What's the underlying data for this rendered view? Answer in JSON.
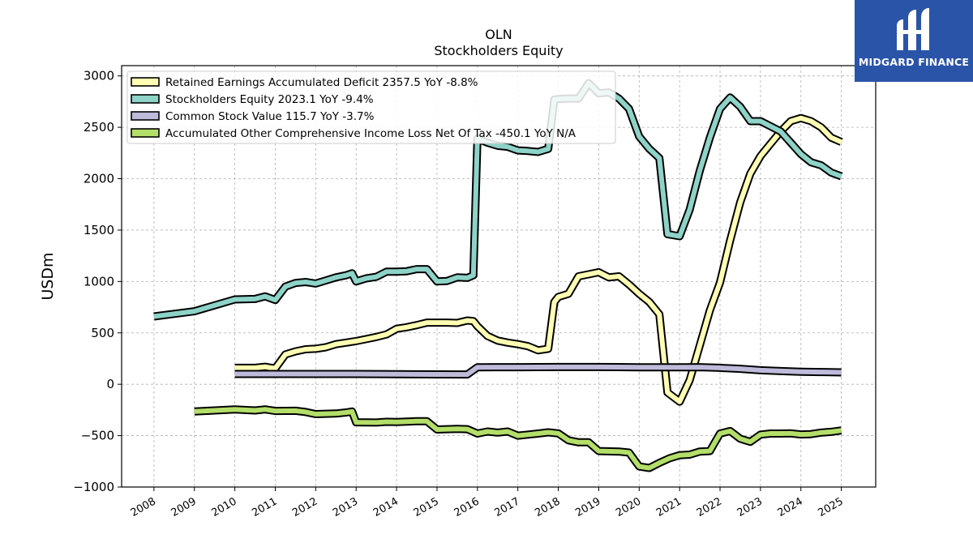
{
  "chart_data": {
    "type": "line",
    "title": "OLN",
    "subtitle": "Stockholders  Equity",
    "ylabel": "USDm",
    "xlabel": "",
    "ylim": [
      -1000,
      3100
    ],
    "xlim": [
      2007.2,
      2025.85
    ],
    "yticks": [
      -1000,
      -500,
      0,
      500,
      1000,
      1500,
      2000,
      2500,
      3000
    ],
    "xticks": [
      2008,
      2009,
      2010,
      2011,
      2012,
      2013,
      2014,
      2015,
      2016,
      2017,
      2018,
      2019,
      2020,
      2021,
      2022,
      2023,
      2024,
      2025
    ],
    "grid": true,
    "legend_position": "top-left",
    "series": [
      {
        "name": "Retained Earnings Accumulated Deficit  2357.5 YoY -8.8%",
        "color": "#ffffb3",
        "points": [
          [
            2010.0,
            160
          ],
          [
            2010.5,
            160
          ],
          [
            2010.75,
            170
          ],
          [
            2010.9,
            160
          ],
          [
            2011.0,
            155
          ],
          [
            2011.25,
            290
          ],
          [
            2011.5,
            320
          ],
          [
            2011.75,
            340
          ],
          [
            2012.0,
            345
          ],
          [
            2012.25,
            360
          ],
          [
            2012.5,
            390
          ],
          [
            2012.75,
            405
          ],
          [
            2013.0,
            420
          ],
          [
            2013.25,
            440
          ],
          [
            2013.5,
            460
          ],
          [
            2013.75,
            485
          ],
          [
            2014.0,
            540
          ],
          [
            2014.25,
            555
          ],
          [
            2014.5,
            575
          ],
          [
            2014.75,
            600
          ],
          [
            2015.0,
            600
          ],
          [
            2015.25,
            600
          ],
          [
            2015.5,
            597
          ],
          [
            2015.75,
            620
          ],
          [
            2015.9,
            615
          ],
          [
            2016.0,
            565
          ],
          [
            2016.25,
            470
          ],
          [
            2016.5,
            425
          ],
          [
            2016.75,
            405
          ],
          [
            2017.0,
            390
          ],
          [
            2017.25,
            370
          ],
          [
            2017.5,
            330
          ],
          [
            2017.75,
            345
          ],
          [
            2017.9,
            800
          ],
          [
            2018.0,
            850
          ],
          [
            2018.25,
            880
          ],
          [
            2018.5,
            1050
          ],
          [
            2018.75,
            1070
          ],
          [
            2019.0,
            1090
          ],
          [
            2019.25,
            1040
          ],
          [
            2019.5,
            1050
          ],
          [
            2019.75,
            970
          ],
          [
            2020.0,
            880
          ],
          [
            2020.25,
            800
          ],
          [
            2020.5,
            680
          ],
          [
            2020.7,
            -80
          ],
          [
            2021.0,
            -170
          ],
          [
            2021.25,
            40
          ],
          [
            2021.5,
            380
          ],
          [
            2021.75,
            720
          ],
          [
            2022.0,
            990
          ],
          [
            2022.25,
            1400
          ],
          [
            2022.5,
            1770
          ],
          [
            2022.75,
            2050
          ],
          [
            2023.0,
            2220
          ],
          [
            2023.25,
            2340
          ],
          [
            2023.5,
            2460
          ],
          [
            2023.75,
            2560
          ],
          [
            2024.0,
            2590
          ],
          [
            2024.25,
            2560
          ],
          [
            2024.5,
            2500
          ],
          [
            2024.75,
            2400
          ],
          [
            2025.0,
            2357
          ]
        ]
      },
      {
        "name": "Stockholders Equity  2023.1 YoY -9.4%",
        "color": "#8dd3c7",
        "points": [
          [
            2008.0,
            660
          ],
          [
            2009.0,
            710
          ],
          [
            2010.0,
            825
          ],
          [
            2010.5,
            830
          ],
          [
            2010.75,
            855
          ],
          [
            2011.0,
            820
          ],
          [
            2011.25,
            950
          ],
          [
            2011.5,
            985
          ],
          [
            2011.75,
            995
          ],
          [
            2012.0,
            980
          ],
          [
            2012.25,
            1010
          ],
          [
            2012.5,
            1040
          ],
          [
            2012.75,
            1060
          ],
          [
            2012.9,
            1080
          ],
          [
            2013.0,
            1000
          ],
          [
            2013.25,
            1030
          ],
          [
            2013.5,
            1045
          ],
          [
            2013.75,
            1095
          ],
          [
            2014.0,
            1095
          ],
          [
            2014.25,
            1100
          ],
          [
            2014.5,
            1120
          ],
          [
            2014.75,
            1120
          ],
          [
            2015.0,
            1000
          ],
          [
            2015.25,
            1005
          ],
          [
            2015.5,
            1040
          ],
          [
            2015.75,
            1035
          ],
          [
            2015.9,
            1060
          ],
          [
            2016.0,
            2390
          ],
          [
            2016.25,
            2350
          ],
          [
            2016.5,
            2320
          ],
          [
            2016.75,
            2310
          ],
          [
            2017.0,
            2275
          ],
          [
            2017.25,
            2270
          ],
          [
            2017.5,
            2260
          ],
          [
            2017.75,
            2290
          ],
          [
            2017.9,
            2770
          ],
          [
            2018.0,
            2775
          ],
          [
            2018.25,
            2780
          ],
          [
            2018.5,
            2780
          ],
          [
            2018.75,
            2930
          ],
          [
            2019.0,
            2830
          ],
          [
            2019.25,
            2840
          ],
          [
            2019.5,
            2780
          ],
          [
            2019.75,
            2680
          ],
          [
            2020.0,
            2410
          ],
          [
            2020.25,
            2290
          ],
          [
            2020.5,
            2200
          ],
          [
            2020.7,
            1460
          ],
          [
            2021.0,
            1440
          ],
          [
            2021.25,
            1700
          ],
          [
            2021.5,
            2080
          ],
          [
            2021.75,
            2400
          ],
          [
            2022.0,
            2680
          ],
          [
            2022.25,
            2790
          ],
          [
            2022.5,
            2700
          ],
          [
            2022.75,
            2560
          ],
          [
            2023.0,
            2560
          ],
          [
            2023.25,
            2510
          ],
          [
            2023.5,
            2460
          ],
          [
            2023.75,
            2350
          ],
          [
            2024.0,
            2240
          ],
          [
            2024.25,
            2160
          ],
          [
            2024.5,
            2130
          ],
          [
            2024.75,
            2060
          ],
          [
            2025.0,
            2023
          ]
        ]
      },
      {
        "name": "Common Stock Value  115.7 YoY -3.7%",
        "color": "#bebada",
        "points": [
          [
            2010.0,
            100
          ],
          [
            2011.0,
            100
          ],
          [
            2012.0,
            100
          ],
          [
            2013.0,
            100
          ],
          [
            2014.0,
            98
          ],
          [
            2015.0,
            96
          ],
          [
            2015.75,
            95
          ],
          [
            2016.0,
            165
          ],
          [
            2016.5,
            166
          ],
          [
            2017.0,
            166
          ],
          [
            2018.0,
            168
          ],
          [
            2019.0,
            168
          ],
          [
            2019.5,
            167
          ],
          [
            2020.0,
            165
          ],
          [
            2020.5,
            165
          ],
          [
            2021.0,
            165
          ],
          [
            2021.5,
            166
          ],
          [
            2022.0,
            160
          ],
          [
            2022.5,
            150
          ],
          [
            2023.0,
            136
          ],
          [
            2023.5,
            128
          ],
          [
            2024.0,
            122
          ],
          [
            2024.5,
            119
          ],
          [
            2025.0,
            116
          ]
        ]
      },
      {
        "name": "Accumulated Other Comprehensive Income Loss Net Of Tax  -450.1 YoY N/A",
        "color": "#b3de69",
        "points": [
          [
            2009.0,
            -265
          ],
          [
            2009.5,
            -255
          ],
          [
            2010.0,
            -245
          ],
          [
            2010.5,
            -255
          ],
          [
            2010.75,
            -245
          ],
          [
            2011.0,
            -260
          ],
          [
            2011.5,
            -258
          ],
          [
            2011.75,
            -270
          ],
          [
            2012.0,
            -290
          ],
          [
            2012.5,
            -285
          ],
          [
            2012.75,
            -275
          ],
          [
            2012.9,
            -265
          ],
          [
            2013.0,
            -370
          ],
          [
            2013.5,
            -372
          ],
          [
            2013.75,
            -365
          ],
          [
            2014.0,
            -368
          ],
          [
            2014.5,
            -360
          ],
          [
            2014.75,
            -360
          ],
          [
            2015.0,
            -440
          ],
          [
            2015.5,
            -435
          ],
          [
            2015.75,
            -437
          ],
          [
            2016.0,
            -480
          ],
          [
            2016.25,
            -460
          ],
          [
            2016.5,
            -470
          ],
          [
            2016.75,
            -460
          ],
          [
            2017.0,
            -500
          ],
          [
            2017.25,
            -490
          ],
          [
            2017.5,
            -480
          ],
          [
            2017.75,
            -468
          ],
          [
            2018.0,
            -478
          ],
          [
            2018.25,
            -545
          ],
          [
            2018.5,
            -565
          ],
          [
            2018.75,
            -565
          ],
          [
            2019.0,
            -650
          ],
          [
            2019.5,
            -655
          ],
          [
            2019.75,
            -665
          ],
          [
            2020.0,
            -800
          ],
          [
            2020.25,
            -815
          ],
          [
            2020.5,
            -765
          ],
          [
            2020.75,
            -720
          ],
          [
            2021.0,
            -690
          ],
          [
            2021.25,
            -685
          ],
          [
            2021.5,
            -655
          ],
          [
            2021.75,
            -650
          ],
          [
            2022.0,
            -480
          ],
          [
            2022.25,
            -455
          ],
          [
            2022.5,
            -530
          ],
          [
            2022.75,
            -560
          ],
          [
            2023.0,
            -490
          ],
          [
            2023.25,
            -480
          ],
          [
            2023.5,
            -480
          ],
          [
            2023.75,
            -478
          ],
          [
            2024.0,
            -488
          ],
          [
            2024.25,
            -485
          ],
          [
            2024.5,
            -470
          ],
          [
            2024.75,
            -463
          ],
          [
            2025.0,
            -450
          ]
        ]
      }
    ]
  },
  "logo": {
    "text": "MIDGARD FINANCE",
    "color": "#2a54a8"
  }
}
